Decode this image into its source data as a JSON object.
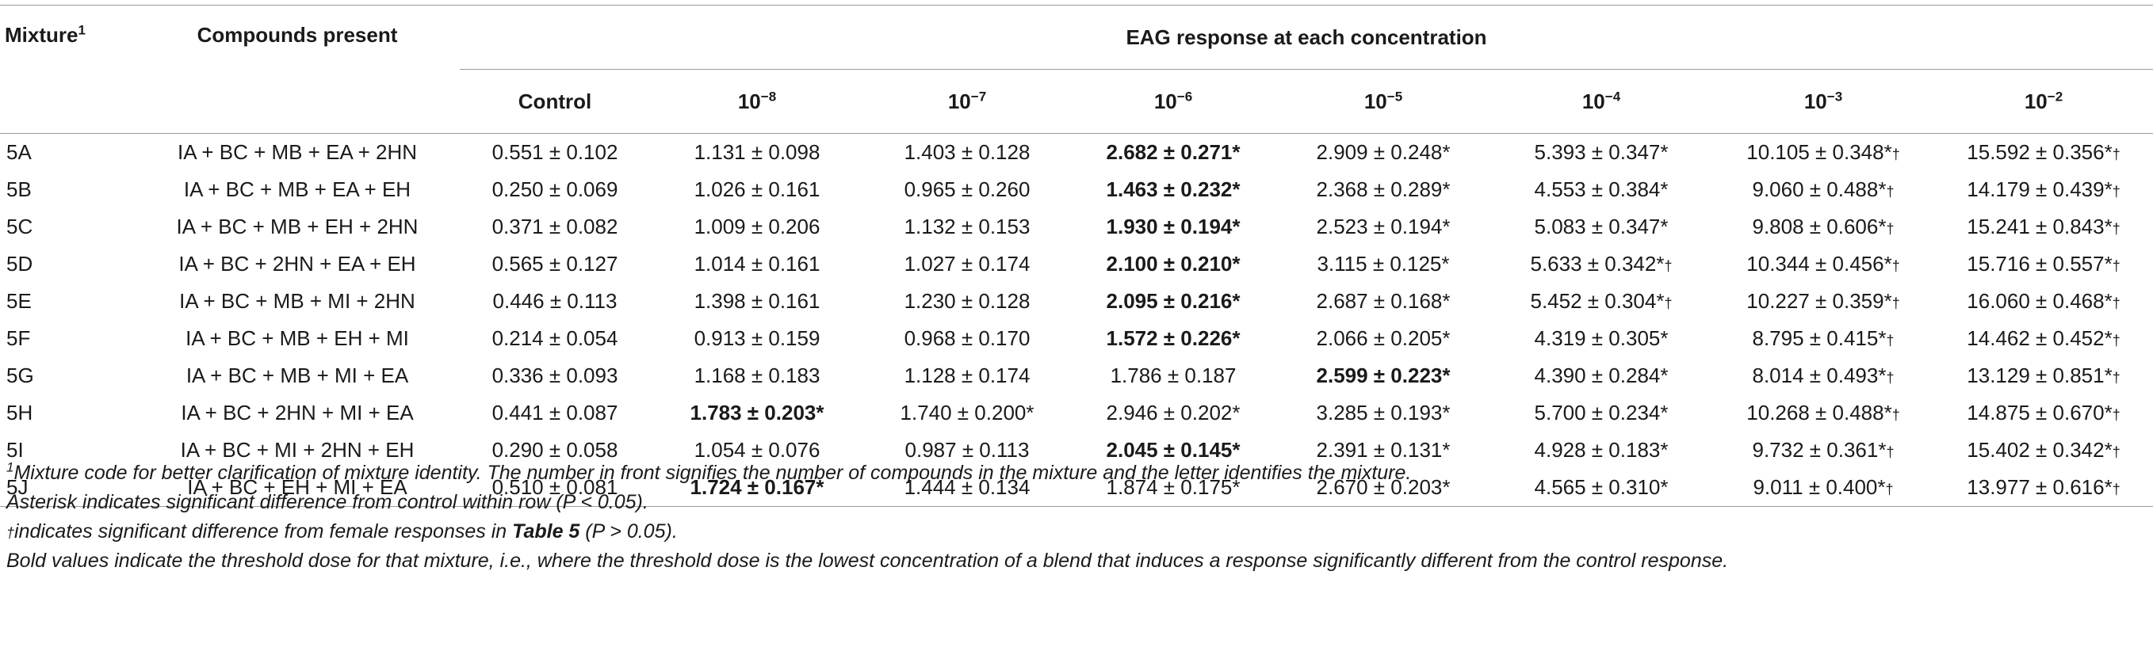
{
  "headers": {
    "mixture": "Mixture",
    "mixture_sup": "1",
    "compounds": "Compounds present",
    "group": "EAG response at each concentration",
    "control": "Control",
    "concentrations": [
      {
        "base": "10",
        "exp": "−8"
      },
      {
        "base": "10",
        "exp": "−7"
      },
      {
        "base": "10",
        "exp": "−6"
      },
      {
        "base": "10",
        "exp": "−5"
      },
      {
        "base": "10",
        "exp": "−4"
      },
      {
        "base": "10",
        "exp": "−3"
      },
      {
        "base": "10",
        "exp": "−2"
      }
    ]
  },
  "rows": [
    {
      "mix": "5A",
      "compounds": "IA + BC + MB + EA + 2HN",
      "vals": [
        {
          "v": "0.551 ± 0.102",
          "s": "",
          "b": false
        },
        {
          "v": "1.131 ± 0.098",
          "s": "",
          "b": false
        },
        {
          "v": "1.403 ± 0.128",
          "s": "",
          "b": false
        },
        {
          "v": "2.682 ± 0.271*",
          "s": "",
          "b": true
        },
        {
          "v": "2.909 ± 0.248*",
          "s": "",
          "b": false
        },
        {
          "v": "5.393 ± 0.347*",
          "s": "",
          "b": false
        },
        {
          "v": "10.105 ± 0.348*",
          "s": "†",
          "b": false
        },
        {
          "v": "15.592 ± 0.356*",
          "s": "†",
          "b": false
        }
      ]
    },
    {
      "mix": "5B",
      "compounds": "IA + BC + MB + EA + EH",
      "vals": [
        {
          "v": "0.250 ± 0.069",
          "s": "",
          "b": false
        },
        {
          "v": "1.026 ± 0.161",
          "s": "",
          "b": false
        },
        {
          "v": "0.965 ± 0.260",
          "s": "",
          "b": false
        },
        {
          "v": "1.463 ± 0.232*",
          "s": "",
          "b": true
        },
        {
          "v": "2.368 ± 0.289*",
          "s": "",
          "b": false
        },
        {
          "v": "4.553 ± 0.384*",
          "s": "",
          "b": false
        },
        {
          "v": "9.060 ± 0.488*",
          "s": "†",
          "b": false
        },
        {
          "v": "14.179 ± 0.439*",
          "s": "†",
          "b": false
        }
      ]
    },
    {
      "mix": "5C",
      "compounds": "IA + BC + MB + EH + 2HN",
      "vals": [
        {
          "v": "0.371 ± 0.082",
          "s": "",
          "b": false
        },
        {
          "v": "1.009 ± 0.206",
          "s": "",
          "b": false
        },
        {
          "v": "1.132 ± 0.153",
          "s": "",
          "b": false
        },
        {
          "v": "1.930 ± 0.194*",
          "s": "",
          "b": true
        },
        {
          "v": "2.523 ± 0.194*",
          "s": "",
          "b": false
        },
        {
          "v": "5.083 ± 0.347*",
          "s": "",
          "b": false
        },
        {
          "v": "9.808 ± 0.606*",
          "s": "†",
          "b": false
        },
        {
          "v": "15.241 ± 0.843*",
          "s": "†",
          "b": false
        }
      ]
    },
    {
      "mix": "5D",
      "compounds": "IA + BC + 2HN + EA + EH",
      "vals": [
        {
          "v": "0.565 ± 0.127",
          "s": "",
          "b": false
        },
        {
          "v": "1.014 ± 0.161",
          "s": "",
          "b": false
        },
        {
          "v": "1.027 ± 0.174",
          "s": "",
          "b": false
        },
        {
          "v": "2.100 ± 0.210*",
          "s": "",
          "b": true
        },
        {
          "v": "3.115 ± 0.125*",
          "s": "",
          "b": false
        },
        {
          "v": "5.633 ± 0.342*",
          "s": "†",
          "b": false
        },
        {
          "v": "10.344 ± 0.456*",
          "s": "†",
          "b": false
        },
        {
          "v": "15.716 ± 0.557*",
          "s": "†",
          "b": false
        }
      ]
    },
    {
      "mix": "5E",
      "compounds": "IA + BC + MB + MI + 2HN",
      "vals": [
        {
          "v": "0.446 ± 0.113",
          "s": "",
          "b": false
        },
        {
          "v": "1.398 ± 0.161",
          "s": "",
          "b": false
        },
        {
          "v": "1.230 ± 0.128",
          "s": "",
          "b": false
        },
        {
          "v": "2.095 ± 0.216*",
          "s": "",
          "b": true
        },
        {
          "v": "2.687 ± 0.168*",
          "s": "",
          "b": false
        },
        {
          "v": "5.452 ± 0.304*",
          "s": "†",
          "b": false
        },
        {
          "v": "10.227 ± 0.359*",
          "s": "†",
          "b": false
        },
        {
          "v": "16.060 ± 0.468*",
          "s": "†",
          "b": false
        }
      ]
    },
    {
      "mix": "5F",
      "compounds": "IA + BC + MB + EH + MI",
      "vals": [
        {
          "v": "0.214 ± 0.054",
          "s": "",
          "b": false
        },
        {
          "v": "0.913 ± 0.159",
          "s": "",
          "b": false
        },
        {
          "v": "0.968 ± 0.170",
          "s": "",
          "b": false
        },
        {
          "v": "1.572 ± 0.226*",
          "s": "",
          "b": true
        },
        {
          "v": "2.066 ± 0.205*",
          "s": "",
          "b": false
        },
        {
          "v": "4.319 ± 0.305*",
          "s": "",
          "b": false
        },
        {
          "v": "8.795 ± 0.415*",
          "s": "†",
          "b": false
        },
        {
          "v": "14.462 ± 0.452*",
          "s": "†",
          "b": false
        }
      ]
    },
    {
      "mix": "5G",
      "compounds": "IA + BC + MB + MI + EA",
      "vals": [
        {
          "v": "0.336 ± 0.093",
          "s": "",
          "b": false
        },
        {
          "v": "1.168 ± 0.183",
          "s": "",
          "b": false
        },
        {
          "v": "1.128 ± 0.174",
          "s": "",
          "b": false
        },
        {
          "v": "1.786 ± 0.187",
          "s": "",
          "b": false
        },
        {
          "v": "2.599 ± 0.223*",
          "s": "",
          "b": true
        },
        {
          "v": "4.390 ± 0.284*",
          "s": "",
          "b": false
        },
        {
          "v": "8.014 ± 0.493*",
          "s": "†",
          "b": false
        },
        {
          "v": "13.129 ± 0.851*",
          "s": "†",
          "b": false
        }
      ]
    },
    {
      "mix": "5H",
      "compounds": "IA + BC + 2HN + MI + EA",
      "vals": [
        {
          "v": "0.441 ± 0.087",
          "s": "",
          "b": false
        },
        {
          "v": "1.783 ± 0.203*",
          "s": "",
          "b": true
        },
        {
          "v": "1.740 ± 0.200*",
          "s": "",
          "b": false
        },
        {
          "v": "2.946 ± 0.202*",
          "s": "",
          "b": false
        },
        {
          "v": "3.285 ± 0.193*",
          "s": "",
          "b": false
        },
        {
          "v": "5.700 ± 0.234*",
          "s": "",
          "b": false
        },
        {
          "v": "10.268 ± 0.488*",
          "s": "†",
          "b": false
        },
        {
          "v": "14.875 ± 0.670*",
          "s": "†",
          "b": false
        }
      ]
    },
    {
      "mix": "5I",
      "compounds": "IA + BC + MI + 2HN + EH",
      "vals": [
        {
          "v": "0.290 ± 0.058",
          "s": "",
          "b": false
        },
        {
          "v": "1.054 ± 0.076",
          "s": "",
          "b": false
        },
        {
          "v": "0.987 ± 0.113",
          "s": "",
          "b": false
        },
        {
          "v": "2.045 ± 0.145*",
          "s": "",
          "b": true
        },
        {
          "v": "2.391 ± 0.131*",
          "s": "",
          "b": false
        },
        {
          "v": "4.928 ± 0.183*",
          "s": "",
          "b": false
        },
        {
          "v": "9.732 ± 0.361*",
          "s": "†",
          "b": false
        },
        {
          "v": "15.402 ± 0.342*",
          "s": "†",
          "b": false
        }
      ]
    },
    {
      "mix": "5J",
      "compounds": "IA + BC + EH + MI + EA",
      "vals": [
        {
          "v": "0.510 ± 0.081",
          "s": "",
          "b": false
        },
        {
          "v": "1.724 ± 0.167*",
          "s": "",
          "b": true
        },
        {
          "v": "1.444 ± 0.134",
          "s": "",
          "b": false
        },
        {
          "v": "1.874 ± 0.175*",
          "s": "",
          "b": false
        },
        {
          "v": "2.670 ± 0.203*",
          "s": "",
          "b": false
        },
        {
          "v": "4.565 ± 0.310*",
          "s": "",
          "b": false
        },
        {
          "v": "9.011 ± 0.400*",
          "s": "†",
          "b": false
        },
        {
          "v": "13.977 ± 0.616*",
          "s": "†",
          "b": false
        }
      ]
    }
  ],
  "footnotes": {
    "note1_sup": "1",
    "note1": "Mixture code for better clarification of mixture identity. The number in front signifies the number of compounds in the mixture and the letter identifies the mixture.",
    "note2": "Asterisk indicates significant difference from control within row (P < 0.05).",
    "note3_dagger": "†",
    "note3_before": "indicates significant difference from female responses in ",
    "note3_bold": "Table 5",
    "note3_after": " (P > 0.05).",
    "note4": "Bold values indicate the threshold dose for that mixture, i.e., where the threshold dose is the lowest concentration of a blend that induces a response significantly different from the control response."
  }
}
